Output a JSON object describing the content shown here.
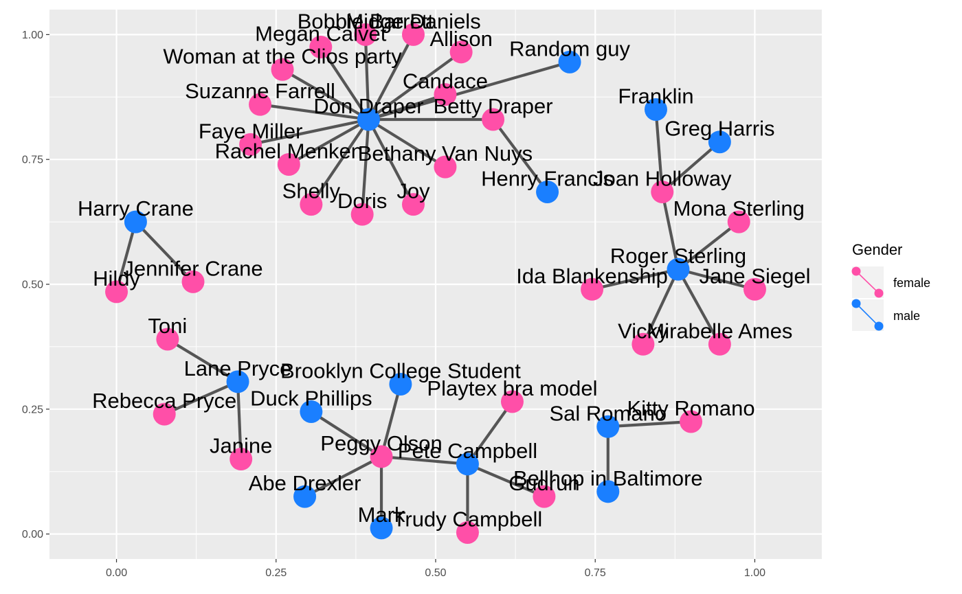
{
  "chart_data": {
    "type": "network",
    "title": "",
    "xlabel": "",
    "ylabel": "",
    "xlim": [
      -0.105,
      1.105
    ],
    "ylim": [
      -0.05,
      1.05
    ],
    "x_ticks": [
      0.0,
      0.25,
      0.5,
      0.75,
      1.0
    ],
    "x_tick_labels": [
      "0.00",
      "0.25",
      "0.50",
      "0.75",
      "1.00"
    ],
    "y_ticks": [
      0.0,
      0.25,
      0.5,
      0.75,
      1.0
    ],
    "y_tick_labels": [
      "0.00",
      "0.25",
      "0.50",
      "0.75",
      "1.00"
    ],
    "grid": true,
    "edge_color": "#555555",
    "legend": {
      "title": "Gender",
      "position": "right",
      "entries": [
        {
          "label": "female",
          "color": "#ff4fa8"
        },
        {
          "label": "male",
          "color": "#1a7fff"
        }
      ]
    },
    "nodes": [
      {
        "name": "Don Draper",
        "gender": "male",
        "x": 0.395,
        "y": 0.83
      },
      {
        "name": "Bobbie Barrett",
        "gender": "female",
        "x": 0.39,
        "y": 1.0
      },
      {
        "name": "Midge Daniels",
        "gender": "female",
        "x": 0.465,
        "y": 1.0
      },
      {
        "name": "Megan Calvet",
        "gender": "female",
        "x": 0.32,
        "y": 0.975
      },
      {
        "name": "Allison",
        "gender": "female",
        "x": 0.54,
        "y": 0.965
      },
      {
        "name": "Woman at the Clios party",
        "gender": "female",
        "x": 0.26,
        "y": 0.93
      },
      {
        "name": "Random guy",
        "gender": "male",
        "x": 0.71,
        "y": 0.945
      },
      {
        "name": "Candace",
        "gender": "female",
        "x": 0.515,
        "y": 0.88
      },
      {
        "name": "Suzanne Farrell",
        "gender": "female",
        "x": 0.225,
        "y": 0.86
      },
      {
        "name": "Betty Draper",
        "gender": "female",
        "x": 0.59,
        "y": 0.83
      },
      {
        "name": "Franklin",
        "gender": "male",
        "x": 0.845,
        "y": 0.85
      },
      {
        "name": "Faye Miller",
        "gender": "female",
        "x": 0.21,
        "y": 0.78
      },
      {
        "name": "Greg Harris",
        "gender": "male",
        "x": 0.945,
        "y": 0.785
      },
      {
        "name": "Rachel Menken",
        "gender": "female",
        "x": 0.27,
        "y": 0.74
      },
      {
        "name": "Bethany Van Nuys",
        "gender": "female",
        "x": 0.515,
        "y": 0.735
      },
      {
        "name": "Henry Francis",
        "gender": "male",
        "x": 0.675,
        "y": 0.685
      },
      {
        "name": "Joan Holloway",
        "gender": "female",
        "x": 0.855,
        "y": 0.685
      },
      {
        "name": "Shelly",
        "gender": "female",
        "x": 0.305,
        "y": 0.66
      },
      {
        "name": "Doris",
        "gender": "female",
        "x": 0.385,
        "y": 0.64
      },
      {
        "name": "Joy",
        "gender": "female",
        "x": 0.465,
        "y": 0.66
      },
      {
        "name": "Harry Crane",
        "gender": "male",
        "x": 0.03,
        "y": 0.625
      },
      {
        "name": "Mona Sterling",
        "gender": "female",
        "x": 0.975,
        "y": 0.625
      },
      {
        "name": "Roger Sterling",
        "gender": "male",
        "x": 0.88,
        "y": 0.53
      },
      {
        "name": "Jennifer Crane",
        "gender": "female",
        "x": 0.12,
        "y": 0.505
      },
      {
        "name": "Hildy",
        "gender": "female",
        "x": 0.0,
        "y": 0.485
      },
      {
        "name": "Ida Blankenship",
        "gender": "female",
        "x": 0.745,
        "y": 0.49
      },
      {
        "name": "Jane Siegel",
        "gender": "female",
        "x": 1.0,
        "y": 0.49
      },
      {
        "name": "Toni",
        "gender": "female",
        "x": 0.08,
        "y": 0.39
      },
      {
        "name": "Vicky",
        "gender": "female",
        "x": 0.825,
        "y": 0.38
      },
      {
        "name": "Mirabelle Ames",
        "gender": "female",
        "x": 0.945,
        "y": 0.38
      },
      {
        "name": "Lane Pryce",
        "gender": "male",
        "x": 0.19,
        "y": 0.305
      },
      {
        "name": "Brooklyn College Student",
        "gender": "male",
        "x": 0.445,
        "y": 0.3
      },
      {
        "name": "Playtex bra model",
        "gender": "female",
        "x": 0.62,
        "y": 0.265
      },
      {
        "name": "Rebecca Pryce",
        "gender": "female",
        "x": 0.075,
        "y": 0.24
      },
      {
        "name": "Duck Phillips",
        "gender": "male",
        "x": 0.305,
        "y": 0.245
      },
      {
        "name": "Sal Romano",
        "gender": "male",
        "x": 0.77,
        "y": 0.215
      },
      {
        "name": "Kitty Romano",
        "gender": "female",
        "x": 0.9,
        "y": 0.225
      },
      {
        "name": "Peggy Olson",
        "gender": "female",
        "x": 0.415,
        "y": 0.155
      },
      {
        "name": "Janine",
        "gender": "female",
        "x": 0.195,
        "y": 0.15
      },
      {
        "name": "Pete Campbell",
        "gender": "male",
        "x": 0.55,
        "y": 0.14
      },
      {
        "name": "Gudrun",
        "gender": "female",
        "x": 0.67,
        "y": 0.075
      },
      {
        "name": "Bellhop in Baltimore",
        "gender": "male",
        "x": 0.77,
        "y": 0.085
      },
      {
        "name": "Abe Drexler",
        "gender": "male",
        "x": 0.295,
        "y": 0.075
      },
      {
        "name": "Mark",
        "gender": "male",
        "x": 0.415,
        "y": 0.012
      },
      {
        "name": "Trudy Campbell",
        "gender": "female",
        "x": 0.55,
        "y": 0.003
      }
    ],
    "edges": [
      [
        "Don Draper",
        "Bobbie Barrett"
      ],
      [
        "Don Draper",
        "Midge Daniels"
      ],
      [
        "Don Draper",
        "Megan Calvet"
      ],
      [
        "Don Draper",
        "Allison"
      ],
      [
        "Don Draper",
        "Woman at the Clios party"
      ],
      [
        "Don Draper",
        "Random guy"
      ],
      [
        "Don Draper",
        "Candace"
      ],
      [
        "Don Draper",
        "Suzanne Farrell"
      ],
      [
        "Don Draper",
        "Betty Draper"
      ],
      [
        "Don Draper",
        "Faye Miller"
      ],
      [
        "Don Draper",
        "Rachel Menken"
      ],
      [
        "Don Draper",
        "Bethany Van Nuys"
      ],
      [
        "Don Draper",
        "Shelly"
      ],
      [
        "Don Draper",
        "Doris"
      ],
      [
        "Don Draper",
        "Joy"
      ],
      [
        "Betty Draper",
        "Henry Francis"
      ],
      [
        "Joan Holloway",
        "Franklin"
      ],
      [
        "Joan Holloway",
        "Greg Harris"
      ],
      [
        "Joan Holloway",
        "Roger Sterling"
      ],
      [
        "Roger Sterling",
        "Mona Sterling"
      ],
      [
        "Roger Sterling",
        "Ida Blankenship"
      ],
      [
        "Roger Sterling",
        "Jane Siegel"
      ],
      [
        "Roger Sterling",
        "Vicky"
      ],
      [
        "Roger Sterling",
        "Mirabelle Ames"
      ],
      [
        "Harry Crane",
        "Hildy"
      ],
      [
        "Harry Crane",
        "Jennifer Crane"
      ],
      [
        "Lane Pryce",
        "Toni"
      ],
      [
        "Lane Pryce",
        "Rebecca Pryce"
      ],
      [
        "Lane Pryce",
        "Janine"
      ],
      [
        "Peggy Olson",
        "Duck Phillips"
      ],
      [
        "Peggy Olson",
        "Brooklyn College Student"
      ],
      [
        "Peggy Olson",
        "Abe Drexler"
      ],
      [
        "Peggy Olson",
        "Mark"
      ],
      [
        "Peggy Olson",
        "Pete Campbell"
      ],
      [
        "Pete Campbell",
        "Playtex bra model"
      ],
      [
        "Pete Campbell",
        "Trudy Campbell"
      ],
      [
        "Pete Campbell",
        "Gudrun"
      ],
      [
        "Sal Romano",
        "Kitty Romano"
      ],
      [
        "Sal Romano",
        "Bellhop in Baltimore"
      ]
    ]
  }
}
